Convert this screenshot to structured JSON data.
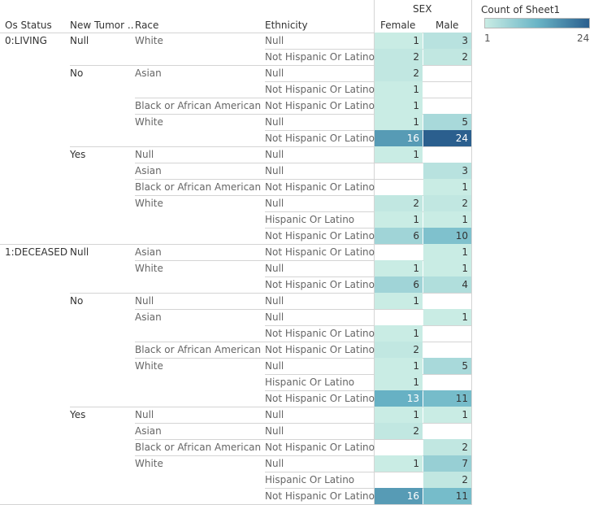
{
  "headers": {
    "os_status": "Os Status",
    "new_tumor": "New Tumor ..",
    "race": "Race",
    "ethnicity": "Ethnicity",
    "sex": "SEX",
    "female": "Female",
    "male": "Male"
  },
  "legend": {
    "title": "Count of Sheet1",
    "min": "1",
    "max": "24",
    "color_low": "#c9ece4",
    "color_high": "#2b5f8e"
  },
  "rows": [
    {
      "os": "0:LIVING",
      "tumor": "Null",
      "race": "White",
      "eth": "Null",
      "female": "1",
      "male": "3"
    },
    {
      "os": "",
      "tumor": "",
      "race": "",
      "eth": "Not Hispanic Or Latino",
      "female": "2",
      "male": "2"
    },
    {
      "os": "",
      "tumor": "No",
      "race": "Asian",
      "eth": "Null",
      "female": "2",
      "male": ""
    },
    {
      "os": "",
      "tumor": "",
      "race": "",
      "eth": "Not Hispanic Or Latino",
      "female": "1",
      "male": ""
    },
    {
      "os": "",
      "tumor": "",
      "race": "Black or African American",
      "eth": "Not Hispanic Or Latino",
      "female": "1",
      "male": ""
    },
    {
      "os": "",
      "tumor": "",
      "race": "White",
      "eth": "Null",
      "female": "1",
      "male": "5"
    },
    {
      "os": "",
      "tumor": "",
      "race": "",
      "eth": "Not Hispanic Or Latino",
      "female": "16",
      "male": "24"
    },
    {
      "os": "",
      "tumor": "Yes",
      "race": "Null",
      "eth": "Null",
      "female": "1",
      "male": ""
    },
    {
      "os": "",
      "tumor": "",
      "race": "Asian",
      "eth": "Null",
      "female": "",
      "male": "3"
    },
    {
      "os": "",
      "tumor": "",
      "race": "Black or African American",
      "eth": "Not Hispanic Or Latino",
      "female": "",
      "male": "1"
    },
    {
      "os": "",
      "tumor": "",
      "race": "White",
      "eth": "Null",
      "female": "2",
      "male": "2"
    },
    {
      "os": "",
      "tumor": "",
      "race": "",
      "eth": "Hispanic Or Latino",
      "female": "1",
      "male": "1"
    },
    {
      "os": "",
      "tumor": "",
      "race": "",
      "eth": "Not Hispanic Or Latino",
      "female": "6",
      "male": "10"
    },
    {
      "os": "1:DECEASED",
      "tumor": "Null",
      "race": "Asian",
      "eth": "Not Hispanic Or Latino",
      "female": "",
      "male": "1"
    },
    {
      "os": "",
      "tumor": "",
      "race": "White",
      "eth": "Null",
      "female": "1",
      "male": "1"
    },
    {
      "os": "",
      "tumor": "",
      "race": "",
      "eth": "Not Hispanic Or Latino",
      "female": "6",
      "male": "4"
    },
    {
      "os": "",
      "tumor": "No",
      "race": "Null",
      "eth": "Null",
      "female": "1",
      "male": ""
    },
    {
      "os": "",
      "tumor": "",
      "race": "Asian",
      "eth": "Null",
      "female": "",
      "male": "1"
    },
    {
      "os": "",
      "tumor": "",
      "race": "",
      "eth": "Not Hispanic Or Latino",
      "female": "1",
      "male": ""
    },
    {
      "os": "",
      "tumor": "",
      "race": "Black or African American",
      "eth": "Not Hispanic Or Latino",
      "female": "2",
      "male": ""
    },
    {
      "os": "",
      "tumor": "",
      "race": "White",
      "eth": "Null",
      "female": "1",
      "male": "5"
    },
    {
      "os": "",
      "tumor": "",
      "race": "",
      "eth": "Hispanic Or Latino",
      "female": "1",
      "male": ""
    },
    {
      "os": "",
      "tumor": "",
      "race": "",
      "eth": "Not Hispanic Or Latino",
      "female": "13",
      "male": "11"
    },
    {
      "os": "",
      "tumor": "Yes",
      "race": "Null",
      "eth": "Null",
      "female": "1",
      "male": "1"
    },
    {
      "os": "",
      "tumor": "",
      "race": "Asian",
      "eth": "Null",
      "female": "2",
      "male": ""
    },
    {
      "os": "",
      "tumor": "",
      "race": "Black or African American",
      "eth": "Not Hispanic Or Latino",
      "female": "",
      "male": "2"
    },
    {
      "os": "",
      "tumor": "",
      "race": "White",
      "eth": "Null",
      "female": "1",
      "male": "7"
    },
    {
      "os": "",
      "tumor": "",
      "race": "",
      "eth": "Hispanic Or Latino",
      "female": "",
      "male": "2"
    },
    {
      "os": "",
      "tumor": "",
      "race": "",
      "eth": "Not Hispanic Or Latino",
      "female": "16",
      "male": "11"
    }
  ]
}
